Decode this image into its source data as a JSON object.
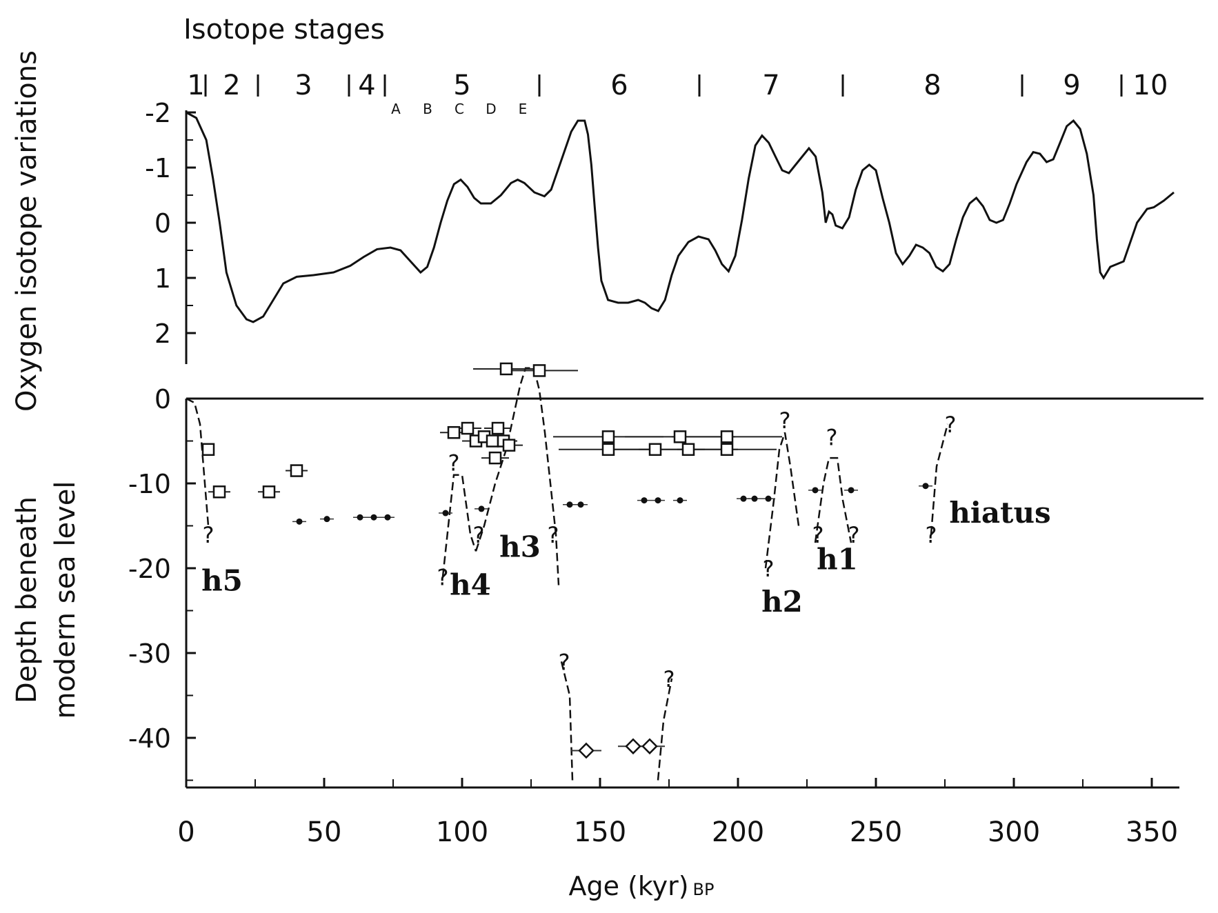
{
  "chart_data": [
    {
      "type": "line",
      "title": "Isotope stages",
      "ylabel": "Oxygen isotope variations",
      "y_reversed": true,
      "ylim": [
        2.5,
        -2
      ],
      "yticks": [
        -2,
        -1,
        0,
        1,
        2
      ],
      "xlim": [
        0,
        360
      ],
      "stages": [
        {
          "label": "1",
          "boundary": 7
        },
        {
          "label": "2",
          "boundary": 26
        },
        {
          "label": "3",
          "boundary": 59
        },
        {
          "label": "4",
          "boundary": 72
        },
        {
          "label": "5",
          "boundary": 128
        },
        {
          "label": "6",
          "boundary": 186
        },
        {
          "label": "7",
          "boundary": 238
        },
        {
          "label": "8",
          "boundary": 303
        },
        {
          "label": "9",
          "boundary": 339
        },
        {
          "label": "10",
          "boundary": null
        }
      ],
      "substages": [
        "A",
        "B",
        "C",
        "D",
        "E"
      ],
      "series": [
        {
          "points": [
            [
              0,
              -2
            ],
            [
              3,
              -1.9
            ],
            [
              6,
              -1.5
            ],
            [
              8,
              -0.8
            ],
            [
              10,
              0
            ],
            [
              12,
              0.9
            ],
            [
              15,
              1.5
            ],
            [
              18,
              1.75
            ],
            [
              20,
              1.8
            ],
            [
              23,
              1.7
            ],
            [
              26,
              1.4
            ],
            [
              29,
              1.1
            ],
            [
              33,
              0.98
            ],
            [
              38,
              0.95
            ],
            [
              44,
              0.9
            ],
            [
              49,
              0.78
            ],
            [
              53,
              0.62
            ],
            [
              57,
              0.48
            ],
            [
              61,
              0.45
            ],
            [
              64,
              0.5
            ],
            [
              67,
              0.7
            ],
            [
              70,
              0.9
            ],
            [
              72,
              0.8
            ],
            [
              74,
              0.45
            ],
            [
              76,
              0
            ],
            [
              78,
              -0.4
            ],
            [
              80,
              -0.7
            ],
            [
              82,
              -0.78
            ],
            [
              84,
              -0.65
            ],
            [
              86,
              -0.45
            ],
            [
              88,
              -0.35
            ],
            [
              91,
              -0.35
            ],
            [
              94,
              -0.5
            ],
            [
              97,
              -0.72
            ],
            [
              99,
              -0.78
            ],
            [
              101,
              -0.72
            ],
            [
              104,
              -0.55
            ],
            [
              107,
              -0.48
            ],
            [
              109,
              -0.6
            ],
            [
              111,
              -0.95
            ],
            [
              113,
              -1.3
            ],
            [
              115,
              -1.65
            ],
            [
              117,
              -1.85
            ],
            [
              119,
              -1.85
            ],
            [
              120,
              -1.6
            ],
            [
              121,
              -1.05
            ],
            [
              122,
              -0.3
            ],
            [
              123,
              0.45
            ],
            [
              124,
              1.05
            ],
            [
              126,
              1.4
            ],
            [
              129,
              1.45
            ],
            [
              132,
              1.45
            ],
            [
              135,
              1.4
            ],
            [
              137,
              1.45
            ],
            [
              139,
              1.55
            ],
            [
              141,
              1.6
            ],
            [
              143,
              1.4
            ],
            [
              145,
              0.95
            ],
            [
              147,
              0.6
            ],
            [
              150,
              0.35
            ],
            [
              153,
              0.25
            ],
            [
              156,
              0.3
            ],
            [
              158,
              0.5
            ],
            [
              160,
              0.75
            ],
            [
              162,
              0.88
            ],
            [
              164,
              0.6
            ],
            [
              166,
              -0.05
            ],
            [
              168,
              -0.8
            ],
            [
              170,
              -1.4
            ],
            [
              172,
              -1.58
            ],
            [
              174,
              -1.45
            ],
            [
              176,
              -1.2
            ],
            [
              178,
              -0.95
            ],
            [
              180,
              -0.9
            ],
            [
              182,
              -1.05
            ],
            [
              184,
              -1.2
            ],
            [
              186,
              -1.35
            ],
            [
              188,
              -1.2
            ],
            [
              190,
              -0.55
            ],
            [
              191,
              0
            ],
            [
              192,
              -0.2
            ],
            [
              193,
              -0.15
            ],
            [
              194,
              0.05
            ],
            [
              196,
              0.1
            ],
            [
              198,
              -0.1
            ],
            [
              200,
              -0.6
            ],
            [
              202,
              -0.95
            ],
            [
              204,
              -1.05
            ],
            [
              206,
              -0.95
            ],
            [
              208,
              -0.45
            ],
            [
              210,
              0
            ],
            [
              212,
              0.55
            ],
            [
              214,
              0.75
            ],
            [
              216,
              0.6
            ],
            [
              218,
              0.4
            ],
            [
              220,
              0.45
            ],
            [
              222,
              0.55
            ],
            [
              224,
              0.8
            ],
            [
              226,
              0.88
            ],
            [
              228,
              0.75
            ],
            [
              230,
              0.3
            ],
            [
              232,
              -0.1
            ],
            [
              234,
              -0.35
            ],
            [
              236,
              -0.45
            ],
            [
              238,
              -0.3
            ],
            [
              240,
              -0.05
            ],
            [
              242,
              0
            ],
            [
              244,
              -0.05
            ],
            [
              246,
              -0.35
            ],
            [
              248,
              -0.7
            ],
            [
              251,
              -1.1
            ],
            [
              253,
              -1.28
            ],
            [
              255,
              -1.25
            ],
            [
              257,
              -1.1
            ],
            [
              259,
              -1.15
            ],
            [
              261,
              -1.45
            ],
            [
              263,
              -1.75
            ],
            [
              265,
              -1.85
            ],
            [
              267,
              -1.7
            ],
            [
              269,
              -1.25
            ],
            [
              271,
              -0.5
            ],
            [
              272,
              0.3
            ],
            [
              273,
              0.9
            ],
            [
              274,
              1
            ],
            [
              276,
              0.8
            ],
            [
              278,
              0.75
            ],
            [
              280,
              0.7
            ],
            [
              282,
              0.35
            ],
            [
              284,
              0
            ],
            [
              287,
              -0.25
            ],
            [
              289,
              -0.28
            ],
            [
              292,
              -0.4
            ],
            [
              295,
              -0.55
            ]
          ]
        }
      ]
    },
    {
      "type": "scatter",
      "xlabel": "Age (kyr)",
      "xlabel_suffix": "BP",
      "ylabel": "Depth beneath modern sea level",
      "xlim": [
        0,
        360
      ],
      "xticks": [
        0,
        50,
        100,
        150,
        200,
        250,
        300,
        350
      ],
      "ylim": [
        -45,
        3
      ],
      "yticks": [
        0,
        -10,
        -20,
        -30,
        -40
      ],
      "series": [
        {
          "marker": "square",
          "points": [
            {
              "x": 8,
              "y": -6,
              "err": 2
            },
            {
              "x": 12,
              "y": -11,
              "err": 4
            },
            {
              "x": 30,
              "y": -11,
              "err": 4
            },
            {
              "x": 40,
              "y": -8.5,
              "err": 4
            },
            {
              "x": 116,
              "y": 3.5,
              "err": 12
            },
            {
              "x": 128,
              "y": 3.3,
              "err": 14
            },
            {
              "x": 97,
              "y": -4,
              "err": 5
            },
            {
              "x": 102,
              "y": -3.5,
              "err": 5
            },
            {
              "x": 105,
              "y": -5,
              "err": 5
            },
            {
              "x": 108,
              "y": -4.5,
              "err": 5
            },
            {
              "x": 111,
              "y": -5,
              "err": 5
            },
            {
              "x": 113,
              "y": -3.5,
              "err": 5
            },
            {
              "x": 115,
              "y": -5,
              "err": 5
            },
            {
              "x": 117,
              "y": -5.5,
              "err": 5
            },
            {
              "x": 112,
              "y": -7,
              "err": 5
            },
            {
              "x": 153,
              "y": -4.5,
              "err": 20
            },
            {
              "x": 179,
              "y": -4.5,
              "err": 20
            },
            {
              "x": 196,
              "y": -4.5,
              "err": 20
            },
            {
              "x": 153,
              "y": -6,
              "err": 18
            },
            {
              "x": 170,
              "y": -6,
              "err": 18
            },
            {
              "x": 182,
              "y": -6,
              "err": 18
            },
            {
              "x": 196,
              "y": -6,
              "err": 18
            }
          ]
        },
        {
          "marker": "dot",
          "points": [
            {
              "x": 41,
              "y": -14.5
            },
            {
              "x": 51,
              "y": -14.2
            },
            {
              "x": 63,
              "y": -14
            },
            {
              "x": 68,
              "y": -14
            },
            {
              "x": 73,
              "y": -14
            },
            {
              "x": 94,
              "y": -13.5
            },
            {
              "x": 107,
              "y": -13
            },
            {
              "x": 139,
              "y": -12.5
            },
            {
              "x": 143,
              "y": -12.5
            },
            {
              "x": 166,
              "y": -12
            },
            {
              "x": 171,
              "y": -12
            },
            {
              "x": 179,
              "y": -12
            },
            {
              "x": 202,
              "y": -11.8
            },
            {
              "x": 206,
              "y": -11.8
            },
            {
              "x": 211,
              "y": -11.8
            },
            {
              "x": 228,
              "y": -10.8
            },
            {
              "x": 241,
              "y": -10.8
            },
            {
              "x": 268,
              "y": -10.3
            }
          ]
        },
        {
          "marker": "diamond",
          "points": [
            {
              "x": 145,
              "y": -41.5
            },
            {
              "x": 162,
              "y": -41
            },
            {
              "x": 168,
              "y": -41
            }
          ]
        }
      ],
      "hiatus_labels": [
        "h1",
        "h2",
        "h3",
        "h4",
        "h5",
        "hiatus"
      ],
      "uncertainty_marker": "?"
    }
  ]
}
